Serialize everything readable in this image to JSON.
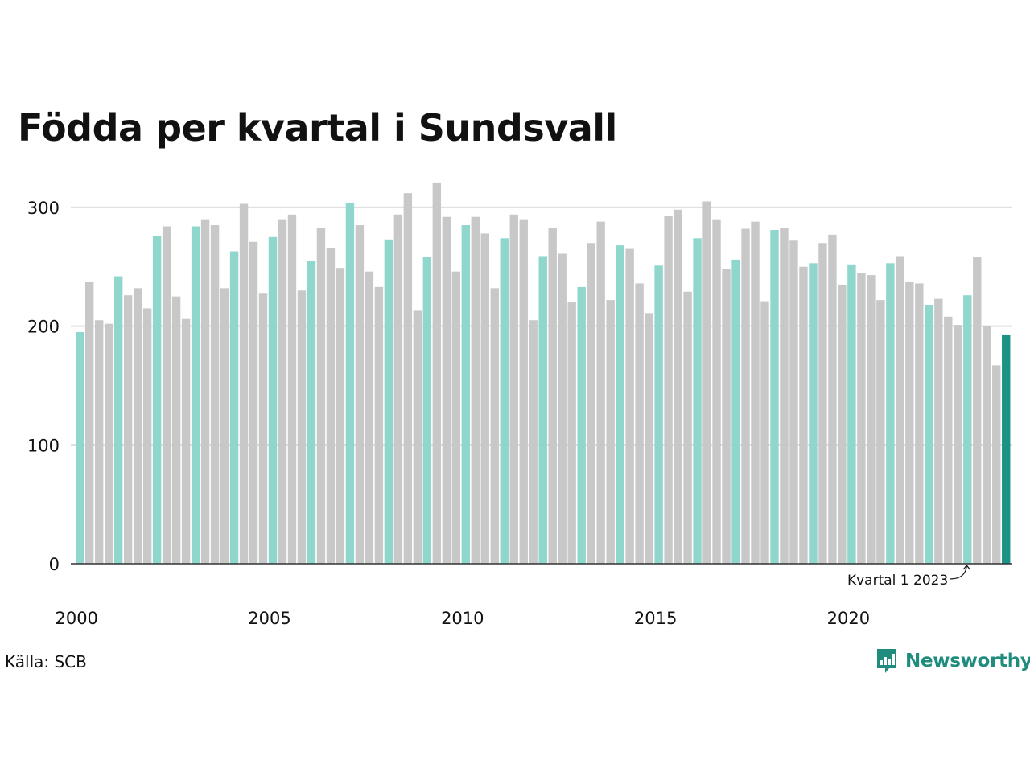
{
  "title": "Födda per kvartal i Sundsvall",
  "source": "Källa: SCB",
  "brand": "Newsworthy",
  "colors": {
    "q1": "#8fd6cd",
    "other": "#c8c8c8",
    "highlight": "#1a9384",
    "grid": "#dcdcdc",
    "axis": "#333333",
    "brand": "#1f8c7e"
  },
  "chart_data": {
    "type": "bar",
    "title": "Födda per kvartal i Sundsvall",
    "xlabel": "",
    "ylabel": "",
    "ylim": [
      0,
      330
    ],
    "yticks": [
      0,
      100,
      200,
      300
    ],
    "x_tick_labels": [
      "2000",
      "2005",
      "2010",
      "2015",
      "2020"
    ],
    "start_year": 2000,
    "grid": "horizontal",
    "annotation": {
      "text": "Kvartal 1 2023",
      "target_index": 92
    },
    "values": [
      195,
      237,
      205,
      202,
      242,
      226,
      232,
      215,
      276,
      284,
      225,
      206,
      284,
      290,
      285,
      232,
      263,
      303,
      271,
      228,
      275,
      290,
      294,
      230,
      255,
      283,
      266,
      249,
      304,
      285,
      246,
      233,
      273,
      294,
      312,
      213,
      258,
      321,
      292,
      246,
      285,
      292,
      278,
      232,
      274,
      294,
      290,
      205,
      259,
      283,
      261,
      220,
      233,
      270,
      288,
      222,
      268,
      265,
      236,
      211,
      251,
      293,
      298,
      229,
      274,
      305,
      290,
      248,
      256,
      282,
      288,
      221,
      281,
      283,
      272,
      250,
      253,
      270,
      277,
      235,
      252,
      245,
      243,
      222,
      253,
      259,
      237,
      236,
      218,
      223,
      208,
      201,
      226,
      258,
      200,
      167,
      193
    ]
  }
}
